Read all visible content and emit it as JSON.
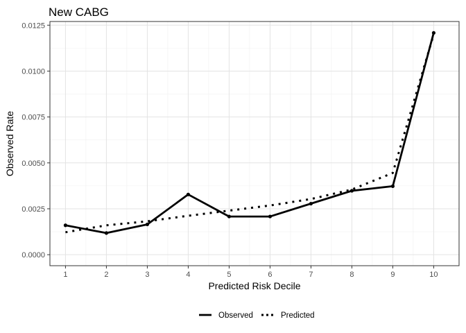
{
  "chart_data": {
    "type": "line",
    "title": "New CABG",
    "xlabel": "Predicted Risk Decile",
    "ylabel": "Observed Rate",
    "x": [
      1,
      2,
      3,
      4,
      5,
      6,
      7,
      8,
      9,
      10
    ],
    "xlim": [
      0.62,
      10.62
    ],
    "ylim": [
      -0.0006,
      0.0127
    ],
    "yticks": [
      0.0,
      0.0025,
      0.005,
      0.0075,
      0.01,
      0.0125
    ],
    "ytick_labels": [
      "0.0000",
      "0.0025",
      "0.0050",
      "0.0075",
      "0.0100",
      "0.0125"
    ],
    "xtick_labels": [
      "1",
      "2",
      "3",
      "4",
      "5",
      "6",
      "7",
      "8",
      "9",
      "10"
    ],
    "grid": true,
    "legend_position": "bottom",
    "series": [
      {
        "name": "Observed",
        "style": "solid",
        "color": "#000000",
        "markers": true,
        "values": [
          0.0016,
          0.00118,
          0.00165,
          0.00328,
          0.00208,
          0.00208,
          0.00278,
          0.00348,
          0.00373,
          0.01208
        ]
      },
      {
        "name": "Predicted",
        "style": "dotted",
        "color": "#000000",
        "markers": false,
        "values": [
          0.00122,
          0.0016,
          0.00182,
          0.00212,
          0.0024,
          0.00268,
          0.00303,
          0.00355,
          0.00445,
          0.012
        ]
      }
    ]
  }
}
